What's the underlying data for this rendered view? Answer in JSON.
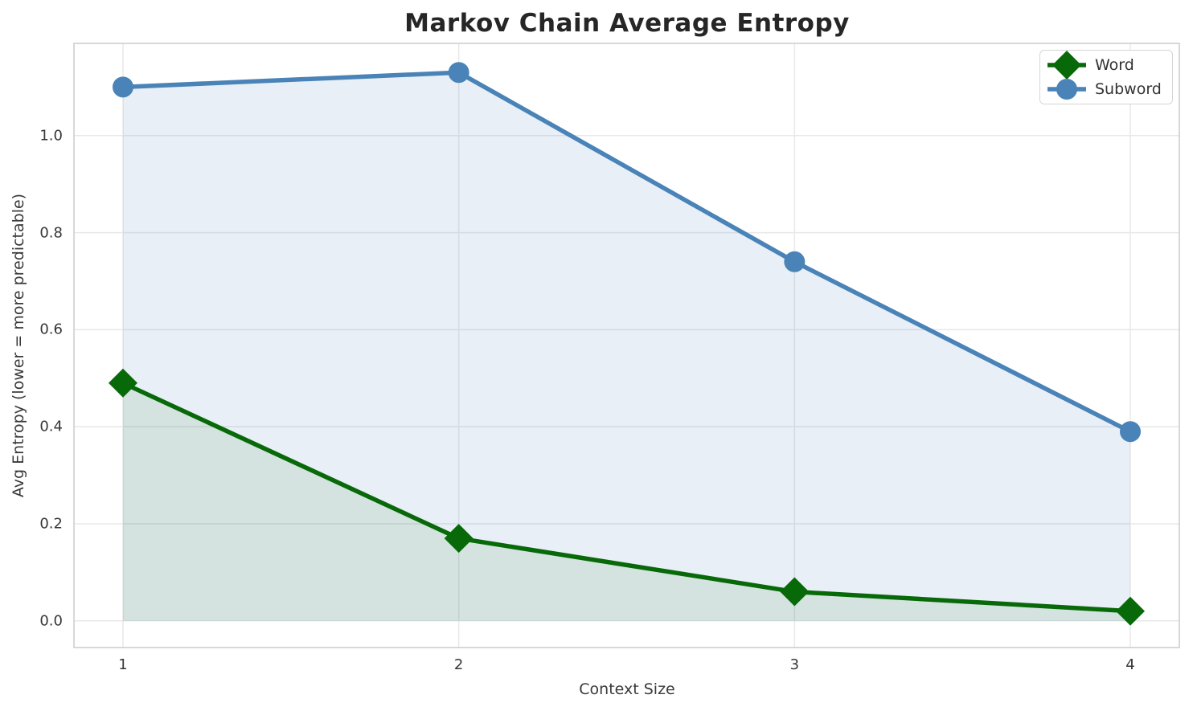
{
  "chart_data": {
    "type": "line",
    "title": "Markov Chain Average Entropy",
    "xlabel": "Context Size",
    "ylabel": "Avg Entropy (lower = more predictable)",
    "x": [
      1,
      2,
      3,
      4
    ],
    "xticks": [
      "1",
      "2",
      "3",
      "4"
    ],
    "yticks": [
      "0.0",
      "0.2",
      "0.4",
      "0.6",
      "0.8",
      "1.0"
    ],
    "ytick_values": [
      0.0,
      0.2,
      0.4,
      0.6,
      0.8,
      1.0
    ],
    "series": [
      {
        "name": "Word",
        "values": [
          0.49,
          0.17,
          0.06,
          0.02
        ],
        "color": "#076908",
        "fill_color": "rgba(7,105,8,0.09)",
        "marker": "diamond"
      },
      {
        "name": "Subword",
        "values": [
          1.1,
          1.13,
          0.74,
          0.39
        ],
        "color": "#4a83b7",
        "fill_color": "rgba(74,131,183,0.13)",
        "marker": "circle"
      }
    ],
    "xlim": [
      0.854,
      4.146
    ],
    "ylim": [
      -0.055,
      1.19
    ],
    "grid": true,
    "legend_position": "upper right",
    "style": {
      "grid_color": "#e8e8e8",
      "spine_color": "#cbcbcb",
      "title_color": "#262626",
      "text_color": "#3a3a3a"
    }
  }
}
